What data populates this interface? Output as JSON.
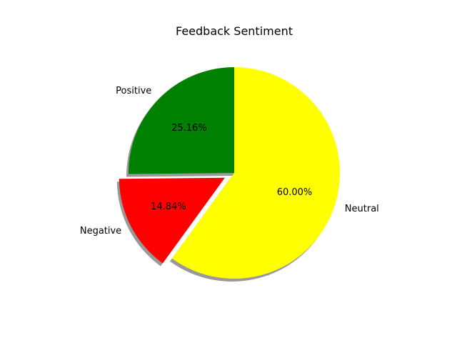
{
  "chart_data": {
    "type": "pie",
    "title": "Feedback Sentiment",
    "slices": [
      {
        "label": "Positive",
        "value": 25.16,
        "pct_label": "25.16%",
        "color": "#008000",
        "explode": false
      },
      {
        "label": "Negative",
        "value": 14.84,
        "pct_label": "14.84%",
        "color": "#ff0000",
        "explode": true
      },
      {
        "label": "Neutral",
        "value": 60.0,
        "pct_label": "60.00%",
        "color": "#ffff00",
        "explode": false
      }
    ],
    "start_angle_deg": 90,
    "direction": "counterclockwise",
    "shadow": true,
    "legend": "none"
  }
}
